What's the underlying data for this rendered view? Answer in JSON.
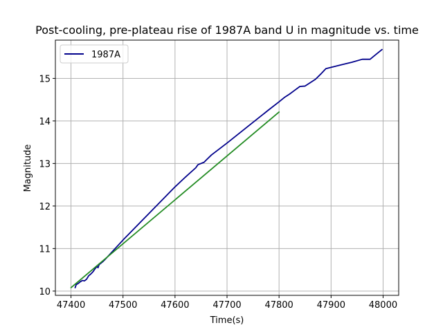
{
  "chart_data": {
    "type": "line",
    "title": "Post-cooling, pre-plateau rise of 1987A band U in magnitude vs. time",
    "xlabel": "Time(s)",
    "ylabel": "Magnitude",
    "xlim": [
      47370,
      48030
    ],
    "ylim": [
      9.9,
      15.9
    ],
    "xticks": [
      47400,
      47500,
      47600,
      47700,
      47800,
      47900,
      48000
    ],
    "xtick_labels": [
      "47400",
      "47500",
      "47600",
      "47700",
      "47800",
      "47900",
      "48000"
    ],
    "yticks": [
      10,
      11,
      12,
      13,
      14,
      15
    ],
    "ytick_labels": [
      "10",
      "11",
      "12",
      "13",
      "14",
      "15"
    ],
    "grid": true,
    "legend_position": "top-left",
    "series": [
      {
        "name": "1987A",
        "color": "#00008b",
        "in_legend": true,
        "x": [
          47408,
          47410,
          47414,
          47418,
          47422,
          47426,
          47430,
          47434,
          47438,
          47442,
          47446,
          47448,
          47450,
          47452,
          47454,
          47458,
          47462,
          47466,
          47500,
          47540,
          47580,
          47600,
          47620,
          47640,
          47644,
          47648,
          47652,
          47656,
          47660,
          47670,
          47700,
          47740,
          47780,
          47800,
          47810,
          47820,
          47830,
          47840,
          47850,
          47860,
          47870,
          47880,
          47890,
          47900,
          47920,
          47940,
          47960,
          47970,
          47975,
          47980,
          47990,
          47998
        ],
        "y": [
          10.08,
          10.15,
          10.18,
          10.22,
          10.25,
          10.24,
          10.28,
          10.36,
          10.4,
          10.45,
          10.52,
          10.55,
          10.58,
          10.55,
          10.62,
          10.66,
          10.7,
          10.75,
          11.2,
          11.7,
          12.2,
          12.45,
          12.68,
          12.9,
          12.97,
          12.99,
          13.01,
          13.03,
          13.08,
          13.2,
          13.48,
          13.87,
          14.26,
          14.45,
          14.55,
          14.63,
          14.72,
          14.81,
          14.82,
          14.9,
          14.98,
          15.1,
          15.23,
          15.26,
          15.32,
          15.38,
          15.45,
          15.45,
          15.45,
          15.5,
          15.6,
          15.68
        ]
      },
      {
        "name": "",
        "color": "#228b22",
        "in_legend": false,
        "x": [
          47400,
          47800
        ],
        "y": [
          10.08,
          14.21
        ]
      }
    ]
  }
}
